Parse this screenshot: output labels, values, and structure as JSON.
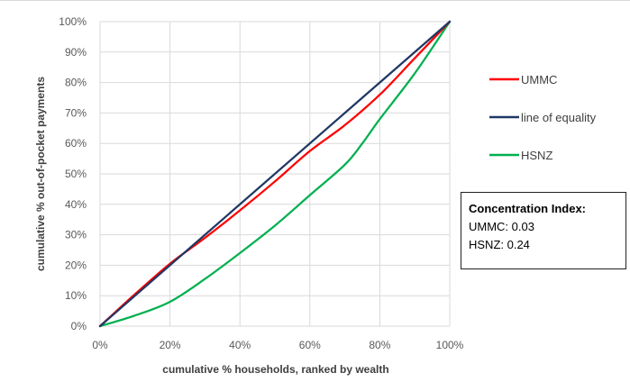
{
  "chart_data": {
    "type": "line",
    "xlabel": "cumulative % households, ranked by wealth",
    "ylabel": "cumulative % out-of-pocket payments",
    "xlim": [
      0,
      100
    ],
    "ylim": [
      0,
      100
    ],
    "x_ticks": [
      "0%",
      "20%",
      "40%",
      "60%",
      "80%",
      "100%"
    ],
    "y_ticks": [
      "0%",
      "10%",
      "20%",
      "30%",
      "40%",
      "50%",
      "60%",
      "70%",
      "80%",
      "90%",
      "100%"
    ],
    "grid": true,
    "legend_position": "right",
    "series": [
      {
        "name": "UMMC",
        "color": "#ff0000",
        "x": [
          0,
          10,
          20,
          30,
          40,
          50,
          60,
          70,
          80,
          90,
          100
        ],
        "y": [
          0,
          10.5,
          20.5,
          29,
          38,
          47.5,
          57.5,
          66,
          76,
          88,
          100
        ]
      },
      {
        "name": "line of equality",
        "color": "#203864",
        "x": [
          0,
          100
        ],
        "y": [
          0,
          100
        ]
      },
      {
        "name": "HSNZ",
        "color": "#00b050",
        "x": [
          0,
          10,
          20,
          30,
          40,
          50,
          60,
          70,
          75,
          80,
          90,
          100
        ],
        "y": [
          0,
          3.5,
          8,
          15.5,
          24,
          33,
          43,
          53,
          60,
          68,
          83,
          100
        ]
      }
    ],
    "annotation": {
      "title": "Concentration Index:",
      "lines": [
        "UMMC: 0.03",
        "HSNZ: 0.24"
      ]
    }
  }
}
